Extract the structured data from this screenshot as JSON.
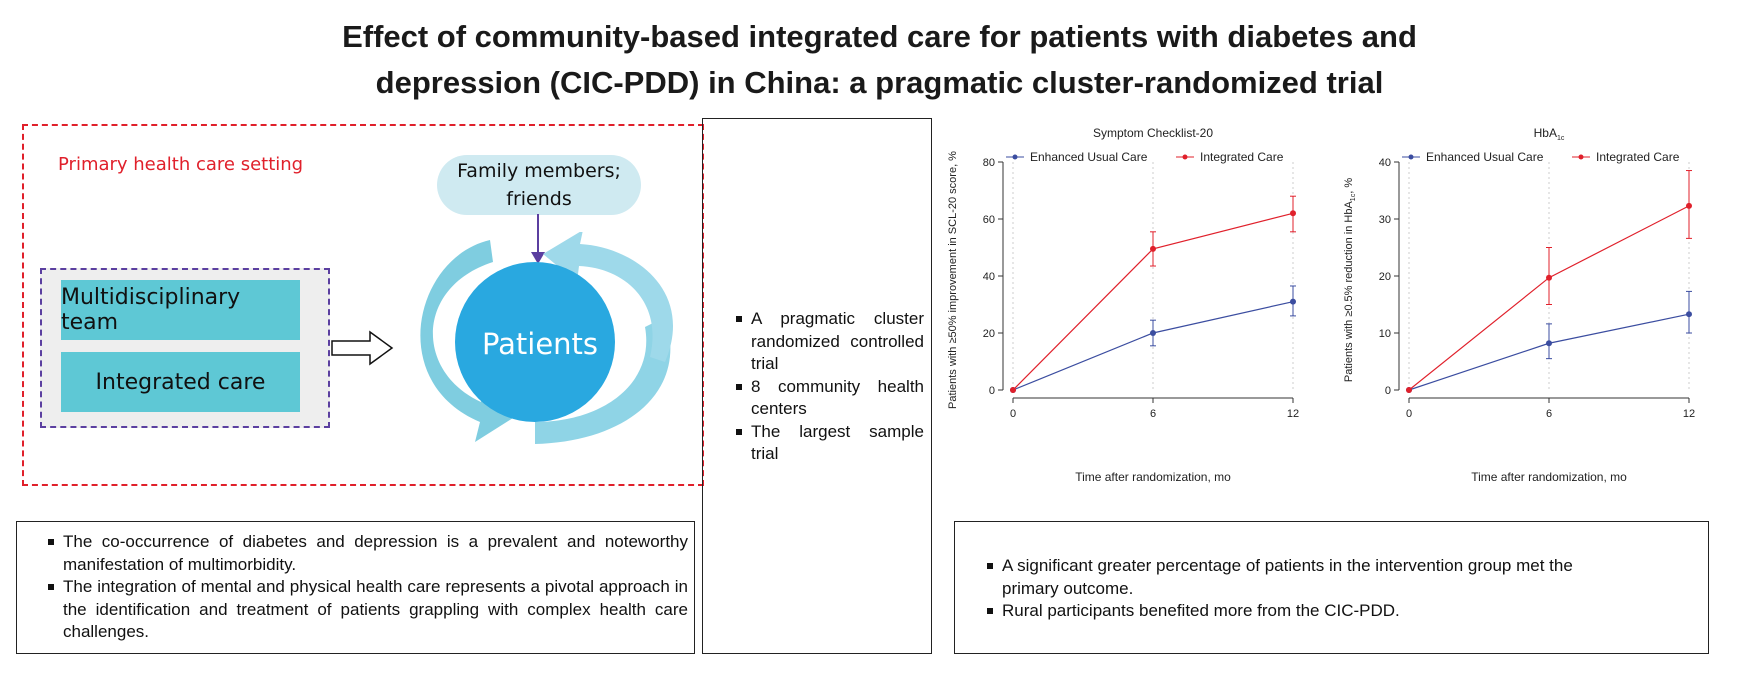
{
  "title": {
    "line1": "Effect of community-based integrated care for patients with diabetes and",
    "line2": "depression (CIC-PDD) in China: a pragmatic cluster-randomized trial"
  },
  "diagram": {
    "setting_label": "Primary health care setting",
    "team_label": "Multidisciplinary team",
    "care_label": "Integrated care",
    "family_line1": "Family members;",
    "family_line2": "friends",
    "patients_label": "Patients",
    "colors": {
      "setting_border": "#e0202b",
      "team_border": "#5b3fa0",
      "teal": "#5ec8d5",
      "patients": "#29a8e0",
      "family": "#cfeaf1"
    }
  },
  "design": {
    "items": [
      "A pragmatic cluster randomized controlled trial",
      "8 community health centers",
      "The largest sample trial"
    ]
  },
  "background": {
    "items": [
      "The co-occurrence of diabetes and depression is a prevalent and noteworthy manifestation of multimorbidity.",
      "The integration of mental and physical health care represents a pivotal approach in the identification and treatment of patients grappling with complex health care challenges."
    ]
  },
  "findings": {
    "items": [
      "A significant greater percentage of patients in the intervention group met the primary outcome.",
      "Rural participants benefited more from the CIC-PDD."
    ]
  },
  "chart_data": [
    {
      "type": "line",
      "title": "Symptom Checklist-20",
      "xlabel": "Time after randomization, mo",
      "ylabel": "Patients with ≥50% improvement in SCL-20 score, %",
      "x": [
        0,
        6,
        12
      ],
      "xlim": [
        0,
        12
      ],
      "ylim": [
        0,
        80
      ],
      "yticks": [
        0,
        20,
        40,
        60,
        80
      ],
      "legend": "top",
      "series": [
        {
          "name": "Enhanced Usual Care",
          "color": "#3b4da0",
          "values": [
            0,
            20,
            31
          ],
          "lower": [
            0,
            15.5,
            26
          ],
          "upper": [
            0,
            24.5,
            36.5
          ]
        },
        {
          "name": "Integrated Care",
          "color": "#e0202b",
          "values": [
            0,
            49.5,
            62
          ],
          "lower": [
            0,
            43.5,
            55.5
          ],
          "upper": [
            0,
            55.5,
            68
          ]
        }
      ]
    },
    {
      "type": "line",
      "title_main": "HbA",
      "title_sub": "1c",
      "xlabel": "Time after randomization, mo",
      "ylabel_pre": "Patients with ≥0.5% reduction in HbA",
      "ylabel_sub": "1c",
      "ylabel_post": ", %",
      "x": [
        0,
        6,
        12
      ],
      "xlim": [
        0,
        12
      ],
      "ylim": [
        0,
        40
      ],
      "yticks": [
        0,
        10,
        20,
        30,
        40
      ],
      "legend": "top",
      "series": [
        {
          "name": "Enhanced Usual Care",
          "color": "#3b4da0",
          "values": [
            0,
            8.2,
            13.3
          ],
          "lower": [
            0,
            5.5,
            10
          ],
          "upper": [
            0,
            11.6,
            17.3
          ]
        },
        {
          "name": "Integrated Care",
          "color": "#e0202b",
          "values": [
            0,
            19.7,
            32.3
          ],
          "lower": [
            0,
            15,
            26.6
          ],
          "upper": [
            0,
            25,
            38.5
          ]
        }
      ]
    }
  ]
}
